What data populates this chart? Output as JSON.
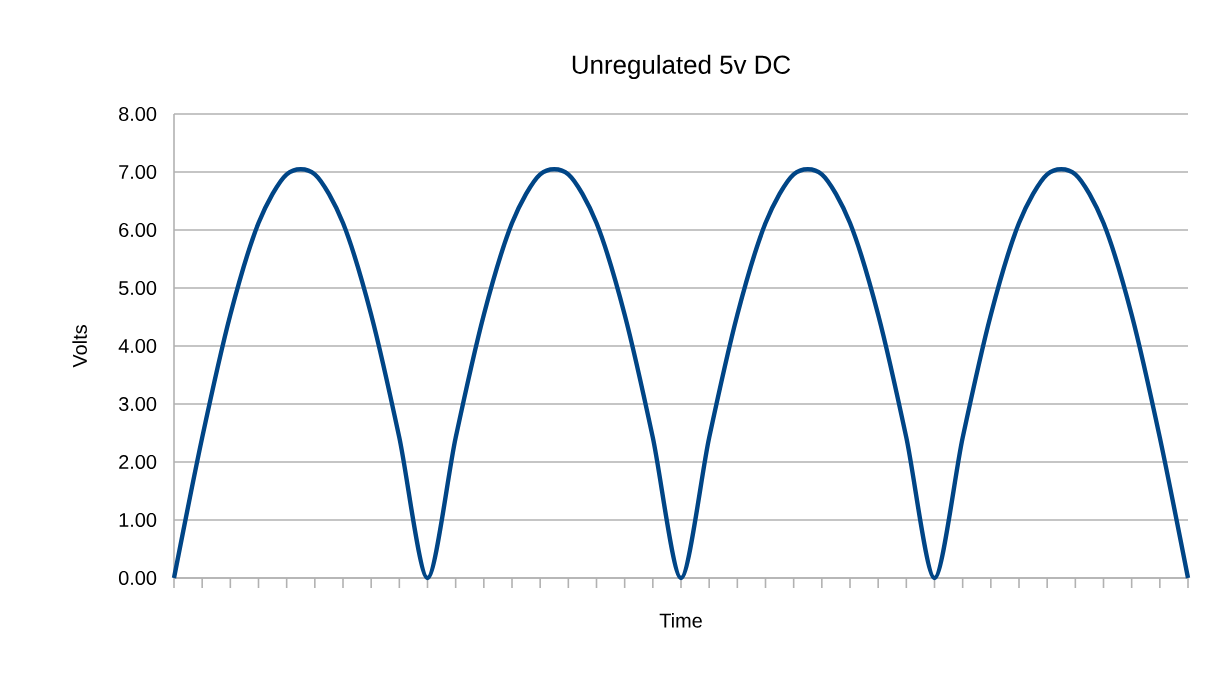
{
  "chart_data": {
    "type": "line",
    "title": "Unregulated 5v DC",
    "xlabel": "Time",
    "ylabel": "Volts",
    "categories": [
      null,
      null,
      null,
      null,
      null,
      null,
      null,
      null,
      null,
      null,
      null,
      null,
      null,
      null,
      null,
      null,
      null,
      null,
      null,
      null,
      null,
      null,
      null,
      null,
      null,
      null,
      null,
      null,
      null,
      null,
      null,
      null,
      null,
      null,
      null,
      null,
      null
    ],
    "series": [
      {
        "color": "#004586",
        "values": [
          0,
          2.42,
          4.54,
          6.12,
          6.96,
          6.96,
          6.12,
          4.54,
          2.42,
          0,
          2.42,
          4.54,
          6.12,
          6.96,
          6.96,
          6.12,
          4.54,
          2.42,
          0,
          2.42,
          4.54,
          6.12,
          6.96,
          6.96,
          6.12,
          4.54,
          2.42,
          0,
          2.42,
          4.54,
          6.12,
          6.96,
          6.96,
          6.12,
          4.54,
          2.42,
          0
        ]
      }
    ],
    "ylim": [
      0,
      8
    ],
    "yticks": [
      {
        "value": 0,
        "label": "0.00"
      },
      {
        "value": 1,
        "label": "1.00"
      },
      {
        "value": 2,
        "label": "2.00"
      },
      {
        "value": 3,
        "label": "3.00"
      },
      {
        "value": 4,
        "label": "4.00"
      },
      {
        "value": 5,
        "label": "5.00"
      },
      {
        "value": 6,
        "label": "6.00"
      },
      {
        "value": 7,
        "label": "7.00"
      },
      {
        "value": 8,
        "label": "8.00"
      }
    ],
    "grid": "y",
    "legend": false,
    "marker": "none",
    "line_style": "solid",
    "tick_labels": "y"
  }
}
